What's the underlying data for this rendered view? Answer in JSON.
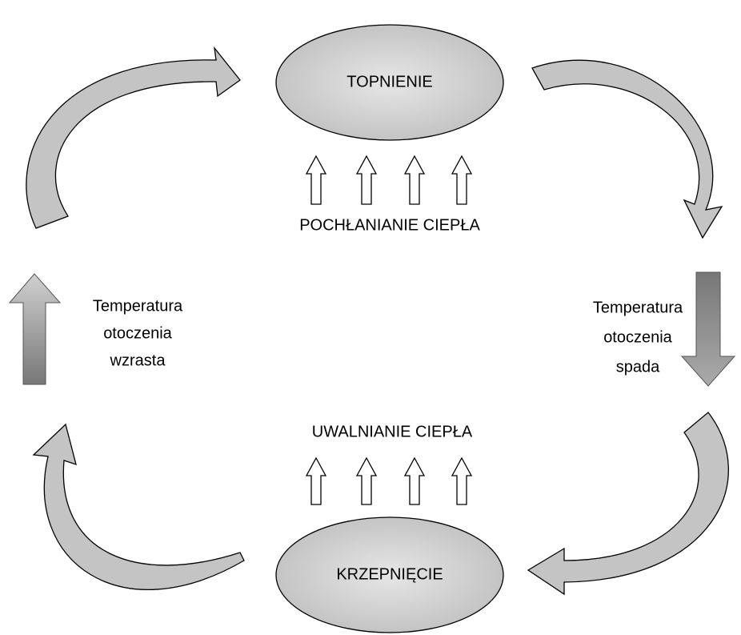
{
  "nodes": [
    {
      "label": "TOPNIENIE"
    },
    {
      "label": "KRZEPNIĘCIE"
    }
  ],
  "labels": {
    "top": "POCHŁANIANIE CIEPŁA",
    "bottom": "UWALNIANIE CIEPŁA"
  },
  "sides": {
    "left": [
      "Temperatura",
      "otoczenia",
      "wzrasta"
    ],
    "right": [
      "Temperatura",
      "otoczenia",
      "spada"
    ]
  }
}
